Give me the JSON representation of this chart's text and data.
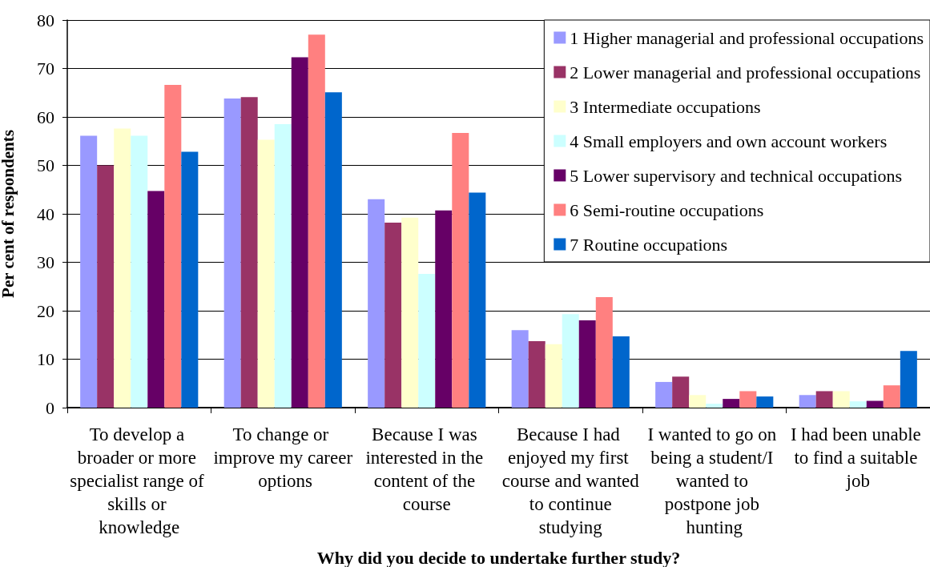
{
  "chart_data": {
    "type": "bar",
    "xlabel": "Why did you decide to undertake further study?",
    "ylabel": "Per cent of respondents",
    "categories": [
      "To develop a broader or more specialist range of skills or knowledge",
      "To change or improve my career options",
      "Because I was interested in the content of the course",
      "Because I had enjoyed my first course and wanted to continue studying",
      "I wanted to go on being a student/I wanted to postpone job hunting",
      "I had been unable to find a suitable job"
    ],
    "series": [
      {
        "name": "1 Higher managerial and professional occupations",
        "color": "#9999ff",
        "values": [
          56.1,
          63.8,
          43.0,
          16.0,
          5.3,
          2.6
        ]
      },
      {
        "name": "2 Lower managerial and professional occupations",
        "color": "#993366",
        "values": [
          50.0,
          64.1,
          38.2,
          13.7,
          6.4,
          3.4
        ]
      },
      {
        "name": "3 Intermediate occupations",
        "color": "#ffffcc",
        "values": [
          57.6,
          55.3,
          39.2,
          13.1,
          2.6,
          3.4
        ]
      },
      {
        "name": "4 Small employers and own account workers",
        "color": "#ccffff",
        "values": [
          56.1,
          58.5,
          27.6,
          19.3,
          0.8,
          1.3
        ]
      },
      {
        "name": "5 Lower supervisory and technical occupations",
        "color": "#660066",
        "values": [
          44.7,
          72.3,
          40.7,
          18.0,
          1.8,
          1.4
        ]
      },
      {
        "name": "6 Semi-routine occupations",
        "color": "#ff8080",
        "values": [
          66.6,
          77.0,
          56.7,
          22.8,
          3.4,
          4.6
        ]
      },
      {
        "name": "7 Routine occupations",
        "color": "#0066cc",
        "values": [
          52.8,
          65.1,
          44.4,
          14.7,
          2.3,
          11.7
        ]
      }
    ],
    "ylim": [
      0,
      80
    ],
    "yticks": [
      0,
      10,
      20,
      30,
      40,
      50,
      60,
      70,
      80
    ],
    "grid": "y",
    "legend": "top right"
  }
}
